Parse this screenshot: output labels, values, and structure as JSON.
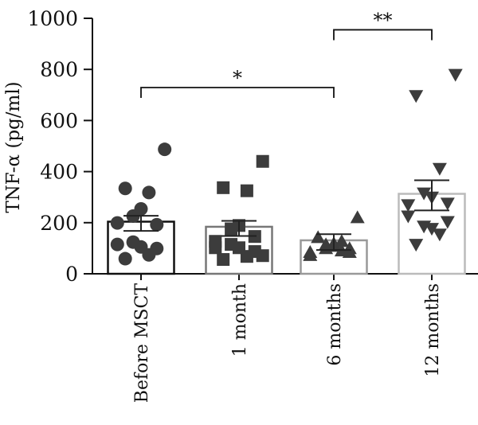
{
  "chart_data": {
    "type": "bar",
    "title": "",
    "xlabel": "",
    "ylabel": "TNF-α (pg/ml)",
    "ylim": [
      0,
      1000
    ],
    "yticks": [
      0,
      200,
      400,
      600,
      800,
      1000
    ],
    "grid": false,
    "categories": [
      "Before MSCT",
      "1 month",
      "6 months",
      "12 months"
    ],
    "means": [
      204,
      184,
      131,
      313
    ],
    "error_upper": [
      227,
      207,
      155,
      366
    ],
    "error_lower": [
      168,
      148,
      93,
      248
    ],
    "bar_outline_colors": [
      "#111111",
      "#777777",
      "#999999",
      "#bbbbbb"
    ],
    "marker_color": "#3c3c3c",
    "markers": [
      "circle",
      "square",
      "triangle-up",
      "triangle-down"
    ],
    "points": [
      [
        487,
        334,
        318,
        254,
        226,
        192,
        199,
        115,
        99,
        124,
        105,
        74,
        59
      ],
      [
        440,
        337,
        325,
        189,
        176,
        146,
        127,
        102,
        87,
        115,
        102,
        68,
        56,
        71
      ],
      [
        220,
        142,
        127,
        118,
        114,
        99,
        84,
        72,
        84,
        99,
        108,
        90
      ],
      [
        780,
        697,
        412,
        300,
        316,
        276,
        270,
        226,
        204,
        186,
        177,
        155,
        115
      ]
    ],
    "annotations": [
      {
        "from": "Before MSCT",
        "to": "6 months",
        "label": "*",
        "level": 729
      },
      {
        "from": "6 months",
        "to": "12 months",
        "label": "**",
        "level": 955
      }
    ]
  }
}
